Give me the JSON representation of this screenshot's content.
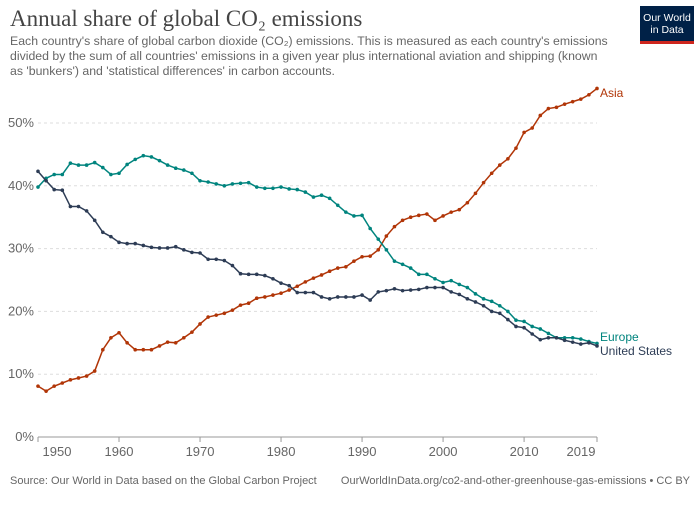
{
  "header": {
    "title": "Annual share of global CO₂ emissions",
    "subtitle": "Each country's share of global carbon dioxide (CO₂) emissions. This is measured as each country's emissions divided by the sum of all countries' emissions in a given year plus international aviation and shipping (known as 'bunkers') and 'statistical differences' in carbon accounts.",
    "logo": "Our World in Data"
  },
  "footer": {
    "source": "Source: Our World in Data based on the Global Carbon Project",
    "link": "OurWorldInData.org/co2-and-other-greenhouse-gas-emissions • CC BY"
  },
  "chart_data": {
    "type": "line",
    "x_start": 1950,
    "x_end": 2019,
    "xticks": [
      "1950",
      "1960",
      "1970",
      "1980",
      "1990",
      "2000",
      "2010",
      "2019"
    ],
    "yticks": [
      "0%",
      "10%",
      "20%",
      "30%",
      "40%",
      "50%"
    ],
    "ylim": [
      0,
      55.5
    ],
    "grid": "horizontal dashed",
    "series": [
      {
        "name": "Asia",
        "color": "#b13507",
        "values": [
          8.1,
          7.3,
          8.1,
          8.6,
          9.1,
          9.4,
          9.7,
          10.5,
          13.9,
          15.8,
          16.6,
          15.0,
          13.9,
          13.9,
          13.9,
          14.5,
          15.1,
          15.0,
          15.8,
          16.7,
          18.0,
          19.1,
          19.4,
          19.7,
          20.2,
          21.0,
          21.3,
          22.1,
          22.3,
          22.6,
          22.9,
          23.4,
          24.0,
          24.7,
          25.3,
          25.8,
          26.4,
          26.9,
          27.1,
          28.0,
          28.7,
          28.8,
          29.8,
          32.0,
          33.5,
          34.5,
          35.0,
          35.3,
          35.5,
          34.5,
          35.2,
          35.8,
          36.2,
          37.3,
          38.8,
          40.5,
          42.0,
          43.3,
          44.3,
          46.0,
          48.5,
          49.2,
          51.2,
          52.3,
          52.5,
          53.0,
          53.4,
          53.8,
          54.5,
          55.5
        ]
      },
      {
        "name": "Europe",
        "color": "#00847e",
        "values": [
          39.8,
          41.2,
          41.8,
          41.8,
          43.6,
          43.3,
          43.3,
          43.7,
          42.9,
          41.8,
          42.0,
          43.4,
          44.2,
          44.8,
          44.6,
          44.0,
          43.3,
          42.8,
          42.5,
          42.0,
          40.8,
          40.6,
          40.3,
          40.0,
          40.3,
          40.4,
          40.5,
          39.8,
          39.6,
          39.6,
          39.8,
          39.5,
          39.4,
          39.0,
          38.2,
          38.5,
          38.0,
          36.9,
          35.8,
          35.2,
          35.3,
          33.2,
          31.5,
          29.8,
          28.0,
          27.5,
          26.9,
          25.9,
          25.9,
          25.2,
          24.6,
          24.9,
          24.3,
          23.8,
          22.8,
          22.0,
          21.6,
          20.9,
          20.0,
          18.6,
          18.4,
          17.6,
          17.2,
          16.5,
          15.8,
          15.8,
          15.8,
          15.6,
          15.2,
          14.9
        ]
      },
      {
        "name": "United States",
        "color": "#2d3c55",
        "values": [
          42.3,
          40.8,
          39.4,
          39.3,
          36.7,
          36.7,
          36.0,
          34.5,
          32.6,
          31.9,
          31.0,
          30.8,
          30.8,
          30.5,
          30.2,
          30.1,
          30.1,
          30.3,
          29.8,
          29.4,
          29.3,
          28.3,
          28.3,
          28.1,
          27.3,
          26.0,
          25.9,
          25.9,
          25.7,
          25.2,
          24.5,
          24.1,
          23.0,
          23.0,
          23.0,
          22.3,
          22.0,
          22.3,
          22.3,
          22.3,
          22.6,
          21.8,
          23.1,
          23.3,
          23.6,
          23.3,
          23.4,
          23.5,
          23.8,
          23.8,
          23.8,
          23.1,
          22.7,
          22.0,
          21.5,
          20.9,
          20.0,
          19.7,
          18.7,
          17.6,
          17.4,
          16.4,
          15.5,
          15.8,
          15.8,
          15.4,
          15.1,
          14.8,
          15.0,
          14.5
        ]
      }
    ]
  }
}
